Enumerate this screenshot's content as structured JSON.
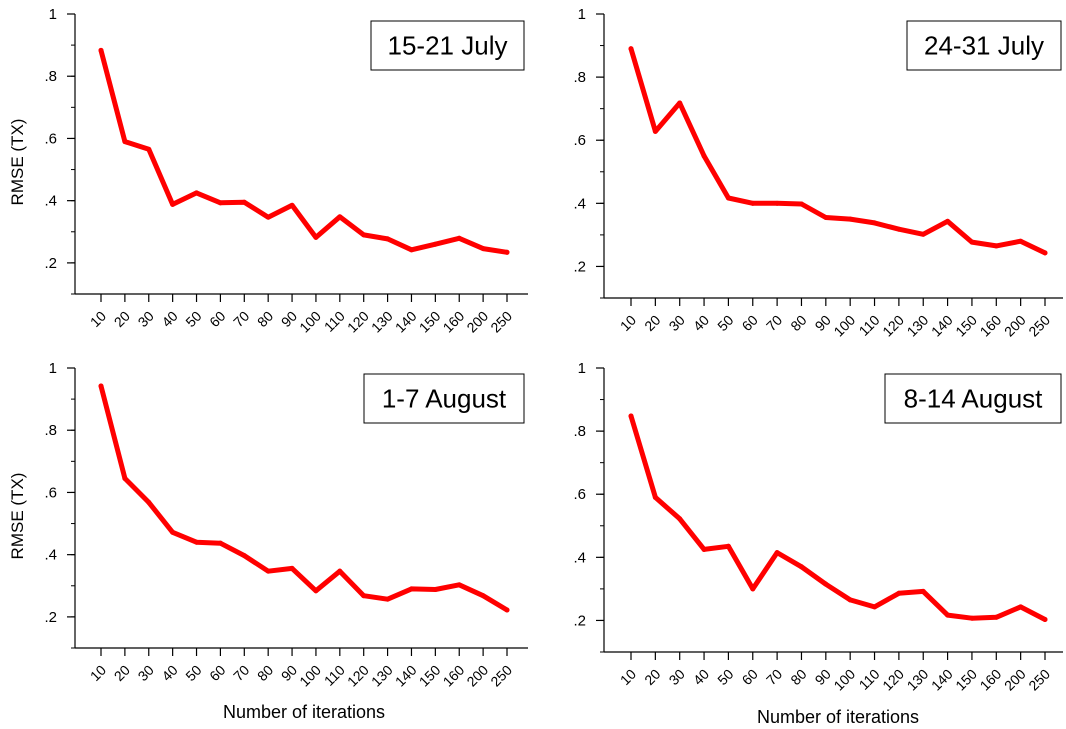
{
  "colors": {
    "line": "#ff0000",
    "axis": "#000000",
    "background": "#ffffff"
  },
  "chart_data": [
    {
      "type": "line",
      "title": "15-21 July",
      "ylabel": "RMSE (TX)",
      "xlabel": "",
      "categories": [
        "10",
        "20",
        "30",
        "40",
        "50",
        "60",
        "70",
        "80",
        "90",
        "100",
        "110",
        "120",
        "130",
        "140",
        "150",
        "160",
        "200",
        "250"
      ],
      "values": [
        0.883,
        0.59,
        0.565,
        0.388,
        0.425,
        0.393,
        0.395,
        0.347,
        0.385,
        0.282,
        0.348,
        0.29,
        0.277,
        0.242,
        0.26,
        0.279,
        0.246,
        0.234
      ],
      "ylim": [
        0.1,
        1.0
      ],
      "yticks": [
        0.2,
        0.4,
        0.6,
        0.8,
        1.0
      ],
      "ytick_labels": [
        ".2",
        ".4",
        ".6",
        ".8",
        "1"
      ],
      "legend": "top-right",
      "grid": false
    },
    {
      "type": "line",
      "title": "24-31 July",
      "ylabel": "",
      "xlabel": "",
      "categories": [
        "10",
        "20",
        "30",
        "40",
        "50",
        "60",
        "70",
        "80",
        "90",
        "100",
        "110",
        "120",
        "130",
        "140",
        "150",
        "160",
        "200",
        "250"
      ],
      "values": [
        0.89,
        0.628,
        0.718,
        0.55,
        0.417,
        0.4,
        0.4,
        0.398,
        0.355,
        0.35,
        0.338,
        0.318,
        0.302,
        0.343,
        0.277,
        0.265,
        0.28,
        0.243
      ],
      "ylim": [
        0.1,
        1.0
      ],
      "yticks": [
        0.2,
        0.4,
        0.6,
        0.8,
        1.0
      ],
      "ytick_labels": [
        ".2",
        ".4",
        ".6",
        ".8",
        "1"
      ],
      "legend": "top-right",
      "grid": false
    },
    {
      "type": "line",
      "title": "1-7 August",
      "ylabel": "RMSE (TX)",
      "xlabel": "Number of iterations",
      "categories": [
        "10",
        "20",
        "30",
        "40",
        "50",
        "60",
        "70",
        "80",
        "90",
        "100",
        "110",
        "120",
        "130",
        "140",
        "150",
        "160",
        "200",
        "250"
      ],
      "values": [
        0.942,
        0.645,
        0.568,
        0.472,
        0.44,
        0.437,
        0.397,
        0.347,
        0.356,
        0.284,
        0.347,
        0.268,
        0.257,
        0.29,
        0.288,
        0.303,
        0.268,
        0.222
      ],
      "ylim": [
        0.1,
        1.0
      ],
      "yticks": [
        0.2,
        0.4,
        0.6,
        0.8,
        1.0
      ],
      "ytick_labels": [
        ".2",
        ".4",
        ".6",
        ".8",
        "1"
      ],
      "legend": "top-right",
      "grid": false
    },
    {
      "type": "line",
      "title": "8-14 August",
      "ylabel": "",
      "xlabel": "Number of iterations",
      "categories": [
        "10",
        "20",
        "30",
        "40",
        "50",
        "60",
        "70",
        "80",
        "90",
        "100",
        "110",
        "120",
        "130",
        "140",
        "150",
        "160",
        "200",
        "250"
      ],
      "values": [
        0.848,
        0.59,
        0.522,
        0.425,
        0.435,
        0.3,
        0.415,
        0.37,
        0.315,
        0.265,
        0.243,
        0.286,
        0.292,
        0.217,
        0.207,
        0.21,
        0.243,
        0.203
      ],
      "ylim": [
        0.1,
        1.0
      ],
      "yticks": [
        0.2,
        0.4,
        0.6,
        0.8,
        1.0
      ],
      "ytick_labels": [
        ".2",
        ".4",
        ".6",
        ".8",
        "1"
      ],
      "legend": "top-right",
      "grid": false
    }
  ]
}
